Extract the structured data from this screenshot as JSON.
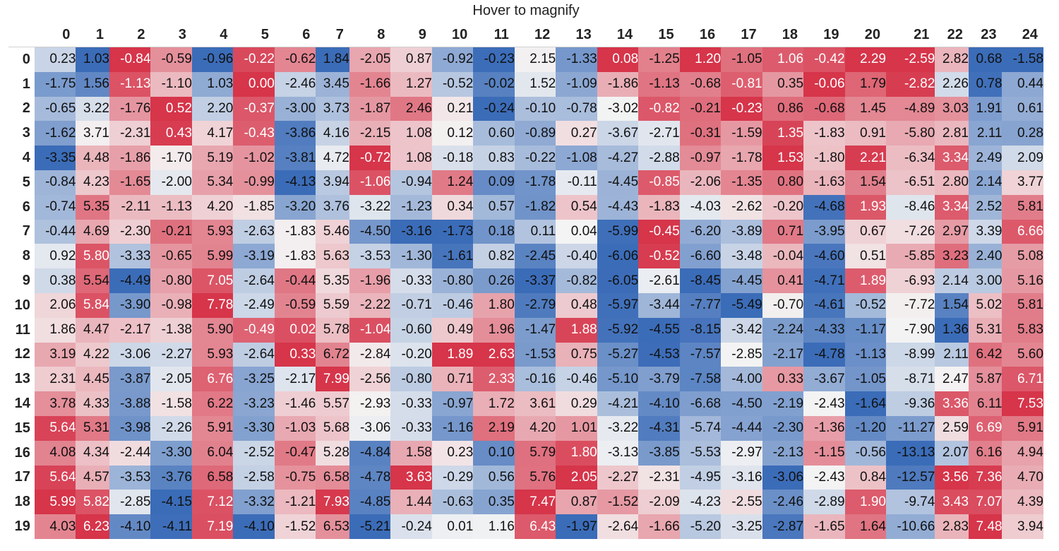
{
  "caption": "Hover to magnify",
  "colors": {
    "negative": "#d6354a",
    "neutral": "#f4f4f4",
    "positive": "#3b6cb8"
  },
  "chart_data": {
    "type": "heatmap",
    "title": "Hover to magnify",
    "columns": [
      "0",
      "1",
      "2",
      "3",
      "4",
      "5",
      "6",
      "7",
      "8",
      "9",
      "10",
      "11",
      "12",
      "13",
      "14",
      "15",
      "16",
      "17",
      "18",
      "19",
      "20",
      "21",
      "22",
      "23",
      "24"
    ],
    "rows": [
      "0",
      "1",
      "2",
      "3",
      "4",
      "5",
      "6",
      "7",
      "8",
      "9",
      "10",
      "11",
      "12",
      "13",
      "14",
      "15",
      "16",
      "17",
      "18",
      "19"
    ],
    "values": [
      [
        "0.23",
        "1.03",
        "-0.84",
        "-0.59",
        "-0.96",
        "-0.22",
        "-0.62",
        "1.84",
        "-2.05",
        "0.87",
        "-0.92",
        "-0.23",
        "2.15",
        "-1.33",
        "0.08",
        "-1.25",
        "1.20",
        "-1.05",
        "1.06",
        "-0.42",
        "2.29",
        "-2.59",
        "2.82",
        "0.68",
        "-1.58"
      ],
      [
        "-1.75",
        "1.56",
        "-1.13",
        "-1.10",
        "1.03",
        "0.00",
        "-2.46",
        "3.45",
        "-1.66",
        "1.27",
        "-0.52",
        "-0.02",
        "1.52",
        "-1.09",
        "-1.86",
        "-1.13",
        "-0.68",
        "-0.81",
        "0.35",
        "-0.06",
        "1.79",
        "-2.82",
        "2.26",
        "0.78",
        "0.44"
      ],
      [
        "-0.65",
        "3.22",
        "-1.76",
        "0.52",
        "2.20",
        "-0.37",
        "-3.00",
        "3.73",
        "-1.87",
        "2.46",
        "0.21",
        "-0.24",
        "-0.10",
        "-0.78",
        "-3.02",
        "-0.82",
        "-0.21",
        "-0.23",
        "0.86",
        "-0.68",
        "1.45",
        "-4.89",
        "3.03",
        "1.91",
        "0.61"
      ],
      [
        "-1.62",
        "3.71",
        "-2.31",
        "0.43",
        "4.17",
        "-0.43",
        "-3.86",
        "4.16",
        "-2.15",
        "1.08",
        "0.12",
        "0.60",
        "-0.89",
        "0.27",
        "-3.67",
        "-2.71",
        "-0.31",
        "-1.59",
        "1.35",
        "-1.83",
        "0.91",
        "-5.80",
        "2.81",
        "2.11",
        "0.28"
      ],
      [
        "-3.35",
        "4.48",
        "-1.86",
        "-1.70",
        "5.19",
        "-1.02",
        "-3.81",
        "4.72",
        "-0.72",
        "1.08",
        "-0.18",
        "0.83",
        "-0.22",
        "-1.08",
        "-4.27",
        "-2.88",
        "-0.97",
        "-1.78",
        "1.53",
        "-1.80",
        "2.21",
        "-6.34",
        "3.34",
        "2.49",
        "2.09"
      ],
      [
        "-0.84",
        "4.23",
        "-1.65",
        "-2.00",
        "5.34",
        "-0.99",
        "-4.13",
        "3.94",
        "-1.06",
        "-0.94",
        "1.24",
        "0.09",
        "-1.78",
        "-0.11",
        "-4.45",
        "-0.85",
        "-2.06",
        "-1.35",
        "0.80",
        "-1.63",
        "1.54",
        "-6.51",
        "2.80",
        "2.14",
        "3.77"
      ],
      [
        "-0.74",
        "5.35",
        "-2.11",
        "-1.13",
        "4.20",
        "-1.85",
        "-3.20",
        "3.76",
        "-3.22",
        "-1.23",
        "0.34",
        "0.57",
        "-1.82",
        "0.54",
        "-4.43",
        "-1.83",
        "-4.03",
        "-2.62",
        "-0.20",
        "-4.68",
        "1.93",
        "-8.46",
        "3.34",
        "2.52",
        "5.81"
      ],
      [
        "-0.44",
        "4.69",
        "-2.30",
        "-0.21",
        "5.93",
        "-2.63",
        "-1.83",
        "5.46",
        "-4.50",
        "-3.16",
        "-1.73",
        "0.18",
        "0.11",
        "0.04",
        "-5.99",
        "-0.45",
        "-6.20",
        "-3.89",
        "0.71",
        "-3.95",
        "0.67",
        "-7.26",
        "2.97",
        "3.39",
        "6.66"
      ],
      [
        "0.92",
        "5.80",
        "-3.33",
        "-0.65",
        "5.99",
        "-3.19",
        "-1.83",
        "5.63",
        "-3.53",
        "-1.30",
        "-1.61",
        "0.82",
        "-2.45",
        "-0.40",
        "-6.06",
        "-0.52",
        "-6.60",
        "-3.48",
        "-0.04",
        "-4.60",
        "0.51",
        "-5.85",
        "3.23",
        "2.40",
        "5.08"
      ],
      [
        "0.38",
        "5.54",
        "-4.49",
        "-0.80",
        "7.05",
        "-2.64",
        "-0.44",
        "5.35",
        "-1.96",
        "-0.33",
        "-0.80",
        "0.26",
        "-3.37",
        "-0.82",
        "-6.05",
        "-2.61",
        "-8.45",
        "-4.45",
        "0.41",
        "-4.71",
        "1.89",
        "-6.93",
        "2.14",
        "3.00",
        "5.16"
      ],
      [
        "2.06",
        "5.84",
        "-3.90",
        "-0.98",
        "7.78",
        "-2.49",
        "-0.59",
        "5.59",
        "-2.22",
        "-0.71",
        "-0.46",
        "1.80",
        "-2.79",
        "0.48",
        "-5.97",
        "-3.44",
        "-7.77",
        "-5.49",
        "-0.70",
        "-4.61",
        "-0.52",
        "-7.72",
        "1.54",
        "5.02",
        "5.81"
      ],
      [
        "1.86",
        "4.47",
        "-2.17",
        "-1.38",
        "5.90",
        "-0.49",
        "0.02",
        "5.78",
        "-1.04",
        "-0.60",
        "0.49",
        "1.96",
        "-1.47",
        "1.88",
        "-5.92",
        "-4.55",
        "-8.15",
        "-3.42",
        "-2.24",
        "-4.33",
        "-1.17",
        "-7.90",
        "1.36",
        "5.31",
        "5.83"
      ],
      [
        "3.19",
        "4.22",
        "-3.06",
        "-2.27",
        "5.93",
        "-2.64",
        "0.33",
        "6.72",
        "-2.84",
        "-0.20",
        "1.89",
        "2.63",
        "-1.53",
        "0.75",
        "-5.27",
        "-4.53",
        "-7.57",
        "-2.85",
        "-2.17",
        "-4.78",
        "-1.13",
        "-8.99",
        "2.11",
        "6.42",
        "5.60"
      ],
      [
        "2.31",
        "4.45",
        "-3.87",
        "-2.05",
        "6.76",
        "-3.25",
        "-2.17",
        "7.99",
        "-2.56",
        "-0.80",
        "0.71",
        "2.33",
        "-0.16",
        "-0.46",
        "-5.10",
        "-3.79",
        "-7.58",
        "-4.00",
        "0.33",
        "-3.67",
        "-1.05",
        "-8.71",
        "2.47",
        "5.87",
        "6.71"
      ],
      [
        "3.78",
        "4.33",
        "-3.88",
        "-1.58",
        "6.22",
        "-3.23",
        "-1.46",
        "5.57",
        "-2.93",
        "-0.33",
        "-0.97",
        "1.72",
        "3.61",
        "0.29",
        "-4.21",
        "-4.10",
        "-6.68",
        "-4.50",
        "-2.19",
        "-2.43",
        "-1.64",
        "-9.36",
        "3.36",
        "6.11",
        "7.53"
      ],
      [
        "5.64",
        "5.31",
        "-3.98",
        "-2.26",
        "5.91",
        "-3.30",
        "-1.03",
        "5.68",
        "-3.06",
        "-0.33",
        "-1.16",
        "2.19",
        "4.20",
        "1.01",
        "-3.22",
        "-4.31",
        "-5.74",
        "-4.44",
        "-2.30",
        "-1.36",
        "-1.20",
        "-11.27",
        "2.59",
        "6.69",
        "5.91"
      ],
      [
        "4.08",
        "4.34",
        "-2.44",
        "-3.30",
        "6.04",
        "-2.52",
        "-0.47",
        "5.28",
        "-4.84",
        "1.58",
        "0.23",
        "0.10",
        "5.79",
        "1.80",
        "-3.13",
        "-3.85",
        "-5.53",
        "-2.97",
        "-2.13",
        "-1.15",
        "-0.56",
        "-13.13",
        "2.07",
        "6.16",
        "4.94"
      ],
      [
        "5.64",
        "4.57",
        "-3.53",
        "-3.76",
        "6.58",
        "-2.58",
        "-0.75",
        "6.58",
        "-4.78",
        "3.63",
        "-0.29",
        "0.56",
        "5.76",
        "2.05",
        "-2.27",
        "-2.31",
        "-4.95",
        "-3.16",
        "-3.06",
        "-2.43",
        "0.84",
        "-12.57",
        "3.56",
        "7.36",
        "4.70"
      ],
      [
        "5.99",
        "5.82",
        "-2.85",
        "-4.15",
        "7.12",
        "-3.32",
        "-1.21",
        "7.93",
        "-4.85",
        "1.44",
        "-0.63",
        "0.35",
        "7.47",
        "0.87",
        "-1.52",
        "-2.09",
        "-4.23",
        "-2.55",
        "-2.46",
        "-2.89",
        "1.90",
        "-9.74",
        "3.43",
        "7.07",
        "4.39"
      ],
      [
        "4.03",
        "6.23",
        "-4.10",
        "-4.11",
        "7.19",
        "-4.10",
        "-1.52",
        "6.53",
        "-5.21",
        "-0.24",
        "0.01",
        "1.16",
        "6.43",
        "-1.97",
        "-2.64",
        "-1.66",
        "-5.20",
        "-3.25",
        "-2.87",
        "-1.65",
        "1.64",
        "-10.66",
        "2.83",
        "7.48",
        "3.94"
      ]
    ]
  }
}
